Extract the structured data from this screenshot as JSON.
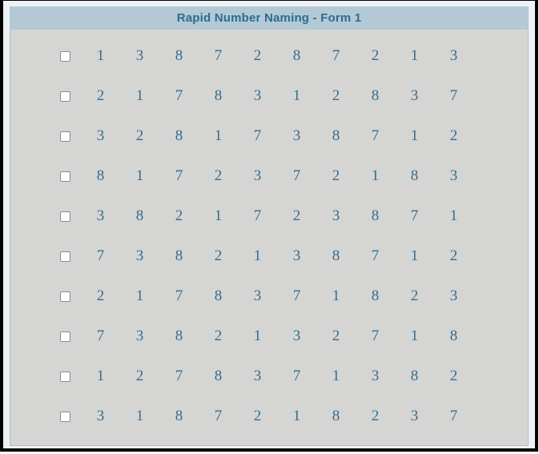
{
  "panel": {
    "title": "Rapid Number Naming - Form 1"
  },
  "colors": {
    "frame_border": "#000000",
    "inner_margin_bg": "#edf1f5",
    "title_bar_bg": "#b3c9d6",
    "title_text": "#2f6b8e",
    "body_bg": "#d5d5d3",
    "body_border": "#bcbcbc",
    "number_text": "#376d90",
    "checkbox_border": "#8a8a8a",
    "checkbox_bg": "#ffffff"
  },
  "grid": {
    "columns_per_row": 10,
    "rows": [
      {
        "checkbox_checked": false,
        "numbers": [
          "1",
          "3",
          "8",
          "7",
          "2",
          "8",
          "7",
          "2",
          "1",
          "3"
        ]
      },
      {
        "checkbox_checked": false,
        "numbers": [
          "2",
          "1",
          "7",
          "8",
          "3",
          "1",
          "2",
          "8",
          "3",
          "7"
        ]
      },
      {
        "checkbox_checked": false,
        "numbers": [
          "3",
          "2",
          "8",
          "1",
          "7",
          "3",
          "8",
          "7",
          "1",
          "2"
        ]
      },
      {
        "checkbox_checked": false,
        "numbers": [
          "8",
          "1",
          "7",
          "2",
          "3",
          "7",
          "2",
          "1",
          "8",
          "3"
        ]
      },
      {
        "checkbox_checked": false,
        "numbers": [
          "3",
          "8",
          "2",
          "1",
          "7",
          "2",
          "3",
          "8",
          "7",
          "1"
        ]
      },
      {
        "checkbox_checked": false,
        "numbers": [
          "7",
          "3",
          "8",
          "2",
          "1",
          "3",
          "8",
          "7",
          "1",
          "2"
        ]
      },
      {
        "checkbox_checked": false,
        "numbers": [
          "2",
          "1",
          "7",
          "8",
          "3",
          "7",
          "1",
          "8",
          "2",
          "3"
        ]
      },
      {
        "checkbox_checked": false,
        "numbers": [
          "7",
          "3",
          "8",
          "2",
          "1",
          "3",
          "2",
          "7",
          "1",
          "8"
        ]
      },
      {
        "checkbox_checked": false,
        "numbers": [
          "1",
          "2",
          "7",
          "8",
          "3",
          "7",
          "1",
          "3",
          "8",
          "2"
        ]
      },
      {
        "checkbox_checked": false,
        "numbers": [
          "3",
          "1",
          "8",
          "7",
          "2",
          "1",
          "8",
          "2",
          "3",
          "7"
        ]
      }
    ]
  }
}
